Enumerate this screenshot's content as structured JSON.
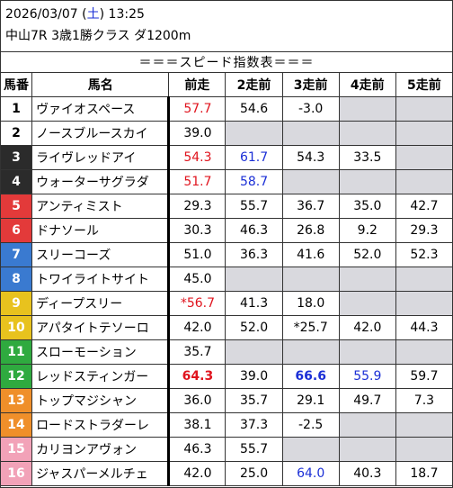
{
  "header": {
    "date": "2026/03/07",
    "dow_open": "(",
    "dow": "土",
    "dow_close": ")",
    "time": "13:25",
    "race": "中山7R 3歳1勝クラス ダ1200m"
  },
  "table": {
    "title": "＝＝＝スピード指数表＝＝＝",
    "headers": [
      "馬番",
      "馬名",
      "前走",
      "2走前",
      "3走前",
      "4走前",
      "5走前"
    ],
    "frame_colors": {
      "1": {
        "bg": "#ffffff",
        "fg": "#000000"
      },
      "2": {
        "bg": "#ffffff",
        "fg": "#000000"
      },
      "3": {
        "bg": "#2b2b2b",
        "fg": "#ffffff"
      },
      "4": {
        "bg": "#2b2b2b",
        "fg": "#ffffff"
      },
      "5": {
        "bg": "#e33a3a",
        "fg": "#ffffff"
      },
      "6": {
        "bg": "#e33a3a",
        "fg": "#ffffff"
      },
      "7": {
        "bg": "#3a7ad0",
        "fg": "#ffffff"
      },
      "8": {
        "bg": "#3a7ad0",
        "fg": "#ffffff"
      },
      "9": {
        "bg": "#e8c21e",
        "fg": "#ffffff"
      },
      "10": {
        "bg": "#e8c21e",
        "fg": "#ffffff"
      },
      "11": {
        "bg": "#2faa3f",
        "fg": "#ffffff"
      },
      "12": {
        "bg": "#2faa3f",
        "fg": "#ffffff"
      },
      "13": {
        "bg": "#ef8f2a",
        "fg": "#ffffff"
      },
      "14": {
        "bg": "#ef8f2a",
        "fg": "#ffffff"
      },
      "15": {
        "bg": "#f2a2b8",
        "fg": "#ffffff"
      },
      "16": {
        "bg": "#f2a2b8",
        "fg": "#ffffff"
      }
    },
    "rows": [
      {
        "num": "1",
        "name": "ヴァイオスペース",
        "vals": [
          {
            "t": "57.7",
            "c": "red"
          },
          {
            "t": "54.6"
          },
          {
            "t": "-3.0"
          },
          {
            "t": "",
            "g": true
          },
          {
            "t": "",
            "g": true
          }
        ]
      },
      {
        "num": "2",
        "name": "ノースブルースカイ",
        "vals": [
          {
            "t": "39.0"
          },
          {
            "t": "",
            "g": true
          },
          {
            "t": "",
            "g": true
          },
          {
            "t": "",
            "g": true
          },
          {
            "t": "",
            "g": true
          }
        ]
      },
      {
        "num": "3",
        "name": "ライヴレッドアイ",
        "vals": [
          {
            "t": "54.3",
            "c": "red"
          },
          {
            "t": "61.7",
            "c": "blue"
          },
          {
            "t": "54.3"
          },
          {
            "t": "33.5"
          },
          {
            "t": "",
            "g": true
          }
        ]
      },
      {
        "num": "4",
        "name": "ウォーターサグラダ",
        "vals": [
          {
            "t": "51.7",
            "c": "red"
          },
          {
            "t": "58.7",
            "c": "blue"
          },
          {
            "t": "",
            "g": true
          },
          {
            "t": "",
            "g": true
          },
          {
            "t": "",
            "g": true
          }
        ]
      },
      {
        "num": "5",
        "name": "アンティミスト",
        "vals": [
          {
            "t": "29.3"
          },
          {
            "t": "55.7"
          },
          {
            "t": "36.7"
          },
          {
            "t": "35.0"
          },
          {
            "t": "42.7"
          }
        ]
      },
      {
        "num": "6",
        "name": "ドナソール",
        "vals": [
          {
            "t": "30.3"
          },
          {
            "t": "46.3"
          },
          {
            "t": "26.8"
          },
          {
            "t": "9.2"
          },
          {
            "t": "29.3"
          }
        ]
      },
      {
        "num": "7",
        "name": "スリーコーズ",
        "vals": [
          {
            "t": "51.0"
          },
          {
            "t": "36.3"
          },
          {
            "t": "41.6"
          },
          {
            "t": "52.0"
          },
          {
            "t": "52.3"
          }
        ]
      },
      {
        "num": "8",
        "name": "トワイライトサイト",
        "vals": [
          {
            "t": "45.0"
          },
          {
            "t": "",
            "g": true
          },
          {
            "t": "",
            "g": true
          },
          {
            "t": "",
            "g": true
          },
          {
            "t": "",
            "g": true
          }
        ]
      },
      {
        "num": "9",
        "name": "ディープスリー",
        "vals": [
          {
            "t": "*56.7",
            "c": "red"
          },
          {
            "t": "41.3"
          },
          {
            "t": "18.0"
          },
          {
            "t": "",
            "g": true
          },
          {
            "t": "",
            "g": true
          }
        ]
      },
      {
        "num": "10",
        "name": "アパタイトテソーロ",
        "vals": [
          {
            "t": "42.0"
          },
          {
            "t": "52.0"
          },
          {
            "t": "*25.7"
          },
          {
            "t": "42.0"
          },
          {
            "t": "44.3"
          }
        ]
      },
      {
        "num": "11",
        "name": "スローモーション",
        "vals": [
          {
            "t": "35.7"
          },
          {
            "t": "",
            "g": true
          },
          {
            "t": "",
            "g": true
          },
          {
            "t": "",
            "g": true
          },
          {
            "t": "",
            "g": true
          }
        ]
      },
      {
        "num": "12",
        "name": "レッドスティンガー",
        "vals": [
          {
            "t": "64.3",
            "c": "red",
            "b": true
          },
          {
            "t": "39.0"
          },
          {
            "t": "66.6",
            "c": "blue",
            "b": true
          },
          {
            "t": "55.9",
            "c": "blue"
          },
          {
            "t": "59.7"
          }
        ]
      },
      {
        "num": "13",
        "name": "トップマジシャン",
        "vals": [
          {
            "t": "36.0"
          },
          {
            "t": "35.7"
          },
          {
            "t": "29.1"
          },
          {
            "t": "49.7"
          },
          {
            "t": "7.3"
          }
        ]
      },
      {
        "num": "14",
        "name": "ロードストラダーレ",
        "vals": [
          {
            "t": "38.1"
          },
          {
            "t": "37.3"
          },
          {
            "t": "-2.5"
          },
          {
            "t": "",
            "g": true
          },
          {
            "t": "",
            "g": true
          }
        ]
      },
      {
        "num": "15",
        "name": "カリヨンアヴォン",
        "vals": [
          {
            "t": "46.3"
          },
          {
            "t": "55.7"
          },
          {
            "t": "",
            "g": true
          },
          {
            "t": "",
            "g": true
          },
          {
            "t": "",
            "g": true
          }
        ]
      },
      {
        "num": "16",
        "name": "ジャスパーメルチェ",
        "vals": [
          {
            "t": "42.0"
          },
          {
            "t": "25.0"
          },
          {
            "t": "64.0",
            "c": "blue"
          },
          {
            "t": "40.3"
          },
          {
            "t": "18.7"
          }
        ]
      }
    ]
  }
}
